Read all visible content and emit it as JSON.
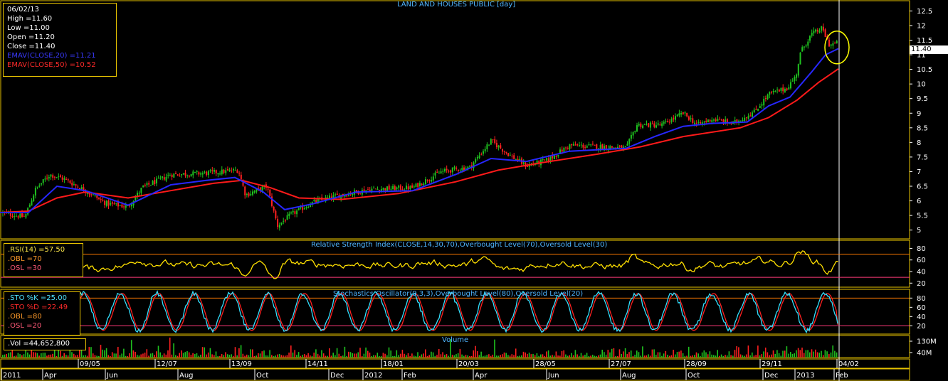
{
  "chart_data": [
    {
      "type": "candlestick",
      "title": "LAND AND HOUSES PUBLIC [day]",
      "y_ticks": [
        5,
        5.5,
        6,
        6.5,
        7,
        7.5,
        8,
        8.5,
        9,
        9.5,
        10,
        10.5,
        11,
        11.5,
        12,
        12.5
      ],
      "ylim": [
        4.7,
        12.85
      ],
      "last_price_label": "11.40",
      "info": {
        "date": "06/02/13",
        "high": "High  =11.60",
        "low": "Low  =11.00",
        "open": "Open  =11.20",
        "close": "Close  =11.40",
        "ema20": "EMAV(CLOSE,20)  =11.21",
        "ema50": "EMAV(CLOSE,50)  =10.52"
      },
      "price_path": [
        {
          "x": 0,
          "y": 5.6
        },
        {
          "x": 35,
          "y": 5.45
        },
        {
          "x": 50,
          "y": 6.4
        },
        {
          "x": 70,
          "y": 6.9
        },
        {
          "x": 90,
          "y": 6.75
        },
        {
          "x": 120,
          "y": 6.35
        },
        {
          "x": 150,
          "y": 5.9
        },
        {
          "x": 180,
          "y": 5.8
        },
        {
          "x": 200,
          "y": 6.45
        },
        {
          "x": 240,
          "y": 6.9
        },
        {
          "x": 290,
          "y": 6.95
        },
        {
          "x": 335,
          "y": 7.05
        },
        {
          "x": 345,
          "y": 6.2
        },
        {
          "x": 375,
          "y": 6.5
        },
        {
          "x": 390,
          "y": 5.15
        },
        {
          "x": 410,
          "y": 5.55
        },
        {
          "x": 440,
          "y": 5.95
        },
        {
          "x": 470,
          "y": 6.15
        },
        {
          "x": 520,
          "y": 6.4
        },
        {
          "x": 580,
          "y": 6.45
        },
        {
          "x": 620,
          "y": 7.0
        },
        {
          "x": 660,
          "y": 7.15
        },
        {
          "x": 690,
          "y": 8.05
        },
        {
          "x": 720,
          "y": 7.5
        },
        {
          "x": 740,
          "y": 7.2
        },
        {
          "x": 770,
          "y": 7.4
        },
        {
          "x": 800,
          "y": 7.9
        },
        {
          "x": 850,
          "y": 7.85
        },
        {
          "x": 880,
          "y": 7.8
        },
        {
          "x": 895,
          "y": 8.6
        },
        {
          "x": 930,
          "y": 8.6
        },
        {
          "x": 960,
          "y": 9.0
        },
        {
          "x": 980,
          "y": 8.6
        },
        {
          "x": 1000,
          "y": 8.8
        },
        {
          "x": 1030,
          "y": 8.65
        },
        {
          "x": 1060,
          "y": 9.05
        },
        {
          "x": 1080,
          "y": 9.65
        },
        {
          "x": 1105,
          "y": 9.85
        },
        {
          "x": 1118,
          "y": 10.25
        },
        {
          "x": 1125,
          "y": 11.1
        },
        {
          "x": 1140,
          "y": 11.7
        },
        {
          "x": 1155,
          "y": 11.9
        },
        {
          "x": 1165,
          "y": 11.35
        },
        {
          "x": 1178,
          "y": 11.4
        }
      ],
      "ema20_path": [
        {
          "x": 0,
          "y": 5.6
        },
        {
          "x": 40,
          "y": 5.6
        },
        {
          "x": 80,
          "y": 6.5
        },
        {
          "x": 120,
          "y": 6.35
        },
        {
          "x": 180,
          "y": 5.85
        },
        {
          "x": 240,
          "y": 6.55
        },
        {
          "x": 290,
          "y": 6.7
        },
        {
          "x": 330,
          "y": 6.8
        },
        {
          "x": 370,
          "y": 6.3
        },
        {
          "x": 400,
          "y": 5.7
        },
        {
          "x": 440,
          "y": 5.9
        },
        {
          "x": 500,
          "y": 6.3
        },
        {
          "x": 580,
          "y": 6.35
        },
        {
          "x": 640,
          "y": 6.9
        },
        {
          "x": 690,
          "y": 7.45
        },
        {
          "x": 740,
          "y": 7.35
        },
        {
          "x": 800,
          "y": 7.7
        },
        {
          "x": 880,
          "y": 7.8
        },
        {
          "x": 920,
          "y": 8.2
        },
        {
          "x": 960,
          "y": 8.55
        },
        {
          "x": 1000,
          "y": 8.65
        },
        {
          "x": 1050,
          "y": 8.7
        },
        {
          "x": 1080,
          "y": 9.25
        },
        {
          "x": 1110,
          "y": 9.55
        },
        {
          "x": 1140,
          "y": 10.4
        },
        {
          "x": 1160,
          "y": 11.0
        },
        {
          "x": 1178,
          "y": 11.21
        }
      ],
      "ema50_path": [
        {
          "x": 0,
          "y": 5.6
        },
        {
          "x": 40,
          "y": 5.65
        },
        {
          "x": 80,
          "y": 6.1
        },
        {
          "x": 120,
          "y": 6.3
        },
        {
          "x": 180,
          "y": 6.1
        },
        {
          "x": 240,
          "y": 6.35
        },
        {
          "x": 300,
          "y": 6.6
        },
        {
          "x": 340,
          "y": 6.7
        },
        {
          "x": 380,
          "y": 6.45
        },
        {
          "x": 420,
          "y": 6.1
        },
        {
          "x": 480,
          "y": 6.05
        },
        {
          "x": 560,
          "y": 6.25
        },
        {
          "x": 640,
          "y": 6.65
        },
        {
          "x": 700,
          "y": 7.05
        },
        {
          "x": 760,
          "y": 7.3
        },
        {
          "x": 840,
          "y": 7.6
        },
        {
          "x": 900,
          "y": 7.85
        },
        {
          "x": 960,
          "y": 8.2
        },
        {
          "x": 1040,
          "y": 8.5
        },
        {
          "x": 1080,
          "y": 8.85
        },
        {
          "x": 1120,
          "y": 9.45
        },
        {
          "x": 1150,
          "y": 10.05
        },
        {
          "x": 1178,
          "y": 10.52
        }
      ]
    },
    {
      "type": "line",
      "title": "Relative Strength Index(CLOSE,14,30,70),Overbought Level(70),Oversold Level(30)",
      "y_ticks": [
        20,
        40,
        60,
        80
      ],
      "ylim": [
        13,
        94
      ],
      "levels": [
        70,
        30
      ],
      "info": {
        "rsi": ".RSI(14)  =57.50",
        "obl": ".OBL  =70",
        "osl": ".OSL  =30"
      }
    },
    {
      "type": "line",
      "title": "Stochastics Oscillator(9,3,3),Overbought Level(80),Oversold Level(20)",
      "y_ticks": [
        20,
        40,
        60,
        80
      ],
      "ylim": [
        2,
        99
      ],
      "levels": [
        80,
        20
      ],
      "info": {
        "k": ".STO %K  =25.00",
        "d": ".STO %D  =22.49",
        "obl": ".OBL  =80",
        "osl": ".OSL  =20"
      }
    },
    {
      "type": "bar",
      "title": "Volume",
      "y_ticks": [
        "130M",
        "40M"
      ],
      "info": {
        "vol": ".Vol  =44,652,800"
      }
    }
  ],
  "date_axis": {
    "upper": [
      "09/05",
      "12/07",
      "13/09",
      "14/11",
      "18/01",
      "20/03",
      "28/05",
      "27/07",
      "28/09",
      "29/11",
      "04/02"
    ],
    "lower": [
      "2011",
      "Apr",
      "Jun",
      "Aug",
      "Oct",
      "Dec",
      "2012",
      "Feb",
      "Apr",
      "Jun",
      "Aug",
      "Oct",
      "Dec",
      "2013",
      "Feb"
    ]
  },
  "colors": {
    "background": "#000000",
    "frame": "#e6c200",
    "up": "#1fc21f",
    "down": "#ff2020",
    "ema20": "#2727ff",
    "ema50": "#ff1a1a",
    "rsi": "#ffe000",
    "sto_k": "#33e0ff",
    "sto_d": "#ff2020",
    "level_line": "#ff7a00",
    "highlight": "#ffff00"
  }
}
